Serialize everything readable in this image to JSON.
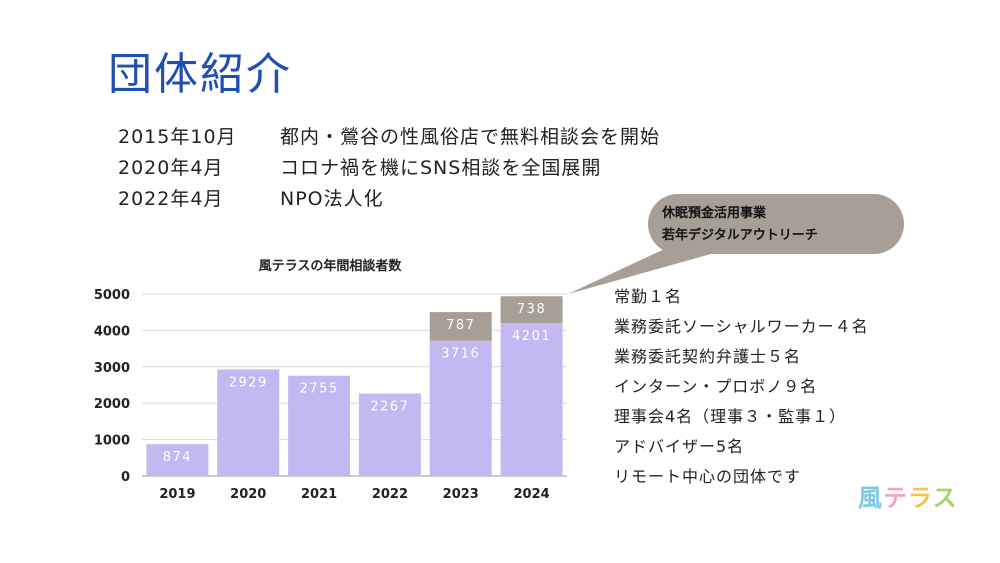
{
  "title": "団体紹介",
  "history": [
    {
      "date": "2015年10月",
      "text": "都内・鶯谷の性風俗店で無料相談会を開始"
    },
    {
      "date": "2020年4月",
      "text": "コロナ禍を機にSNS相談を全国展開"
    },
    {
      "date": "2022年4月",
      "text": "NPO法人化"
    }
  ],
  "callout": {
    "line1": "休眠預金活用事業",
    "line2": "若年デジタルアウトリーチ"
  },
  "staff": [
    "常勤１名",
    "業務委託ソーシャルワーカー４名",
    "業務委託契約弁護士５名",
    "インターン・プロボノ９名",
    "理事会4名（理事３・監事１）",
    "アドバイザー5名",
    "リモート中心の団体です"
  ],
  "logo": {
    "chars": [
      "風",
      "テ",
      "ラ",
      "ス"
    ]
  },
  "colors": {
    "title": "#1f4fb5",
    "bar_main": "#c4b8f2",
    "bar_top": "#a79f95"
  },
  "chart_data": {
    "type": "bar",
    "title": "風テラスの年間相談者数",
    "categories": [
      "2019",
      "2020",
      "2021",
      "2022",
      "2023",
      "2024"
    ],
    "series": [
      {
        "values": [
          874,
          2929,
          2755,
          2267,
          3716,
          4201
        ]
      },
      {
        "values": [
          0,
          0,
          0,
          0,
          787,
          738
        ]
      }
    ],
    "stacked": true,
    "ylim": [
      0,
      5000
    ],
    "yticks": [
      0,
      1000,
      2000,
      3000,
      4000,
      5000
    ],
    "grid": true
  }
}
